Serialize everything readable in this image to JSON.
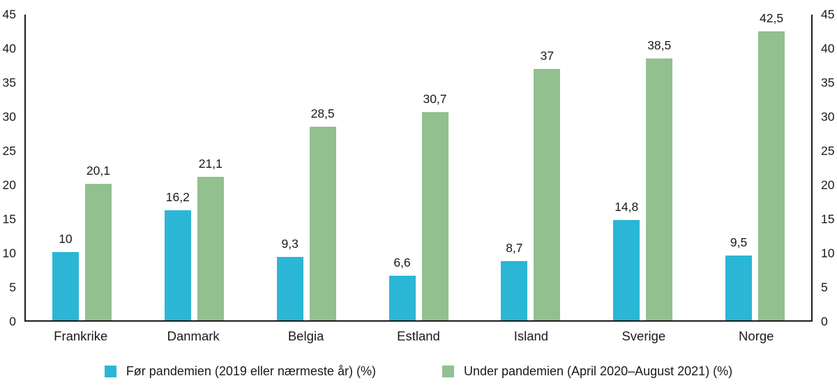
{
  "chart_data": {
    "type": "bar",
    "title": "",
    "xlabel": "",
    "ylabel": "",
    "categories": [
      "Frankrike",
      "Danmark",
      "Belgia",
      "Estland",
      "Island",
      "Sverige",
      "Norge"
    ],
    "series": [
      {
        "name": "Før pandemien (2019 eller nærmeste år) (%)",
        "color": "#2bb6d5",
        "values": [
          10,
          16.2,
          9.3,
          6.6,
          8.7,
          14.8,
          9.5
        ],
        "labels": [
          "10",
          "16,2",
          "9,3",
          "6,6",
          "8,7",
          "14,8",
          "9,5"
        ]
      },
      {
        "name": "Under pandemien (April 2020–August 2021) (%)",
        "color": "#92c08e",
        "values": [
          20.1,
          21.1,
          28.5,
          30.7,
          37,
          38.5,
          42.5
        ],
        "labels": [
          "20,1",
          "21,1",
          "28,5",
          "30,7",
          "37",
          "38,5",
          "42,5"
        ]
      }
    ],
    "ylim": [
      0,
      45
    ],
    "yticks": [
      0,
      5,
      10,
      15,
      20,
      25,
      30,
      35,
      40,
      45
    ],
    "grid": false,
    "legend_position": "bottom",
    "axis_color": "#1d1d1b",
    "background_color": "#ffffff"
  }
}
